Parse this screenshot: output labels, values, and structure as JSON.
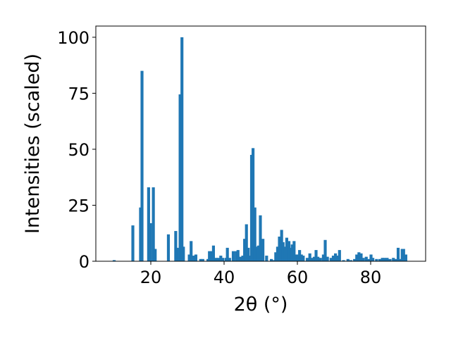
{
  "chart_data": {
    "type": "bar",
    "xlabel": "2θ (°)",
    "ylabel": "Intensities (scaled)",
    "xlim": [
      5,
      95
    ],
    "ylim": [
      0,
      105
    ],
    "xticks": [
      20,
      40,
      60,
      80
    ],
    "yticks": [
      0,
      25,
      50,
      75,
      100
    ],
    "color": "#1f77b4",
    "bar_width": 0.8,
    "x": [
      10.0,
      15.1,
      17.2,
      17.6,
      19.4,
      19.9,
      20.7,
      21.2,
      24.8,
      26.8,
      27.2,
      28.0,
      28.5,
      28.9,
      30.5,
      31.0,
      31.7,
      32.3,
      33.6,
      34.2,
      35.6,
      36.0,
      36.6,
      37.1,
      37.8,
      38.4,
      39.1,
      39.6,
      40.5,
      40.9,
      41.5,
      42.5,
      43.3,
      43.8,
      44.5,
      45.1,
      45.6,
      46.1,
      46.6,
      47.1,
      47.5,
      47.9,
      48.4,
      48.9,
      49.4,
      49.9,
      50.6,
      51.6,
      52.9,
      53.6,
      54.1,
      54.6,
      55.1,
      55.7,
      56.1,
      56.6,
      57.1,
      57.7,
      58.2,
      58.6,
      59.1,
      59.7,
      60.1,
      60.6,
      61.1,
      61.6,
      62.7,
      63.4,
      64.1,
      64.6,
      65.1,
      65.6,
      66.3,
      67.1,
      67.6,
      68.2,
      69.2,
      69.8,
      70.4,
      71.0,
      71.5,
      72.6,
      73.8,
      74.6,
      75.6,
      76.2,
      76.8,
      77.4,
      78.0,
      78.8,
      79.4,
      80.1,
      80.6,
      81.6,
      82.5,
      83.2,
      83.8,
      84.5,
      85.3,
      86.2,
      86.9,
      87.5,
      88.0,
      88.6,
      89.0,
      89.6
    ],
    "values": [
      0.5,
      16,
      24,
      85,
      33,
      17,
      33,
      5.5,
      12,
      13.5,
      6,
      74.5,
      100,
      6.5,
      3,
      9,
      2.5,
      3,
      1,
      1,
      1,
      4.5,
      4.5,
      7,
      1.5,
      1.5,
      2.5,
      1.5,
      1.5,
      6,
      1.5,
      4.5,
      4.5,
      5,
      2,
      2.5,
      10,
      16.5,
      6,
      2.5,
      47.5,
      50.5,
      24,
      6.5,
      7,
      20.5,
      10,
      2.5,
      1,
      0.5,
      4,
      6.5,
      11,
      14,
      8.5,
      6.5,
      10.5,
      9,
      6,
      7.5,
      9,
      3,
      3,
      5,
      3,
      2.5,
      1.5,
      3.5,
      1.5,
      2,
      5,
      2,
      1.5,
      3,
      9.5,
      2,
      1.5,
      2.5,
      3.5,
      2.5,
      5,
      0.5,
      1,
      0.5,
      1,
      3,
      4,
      3.5,
      1.5,
      2,
      1,
      3,
      1.5,
      1,
      1,
      1.5,
      1.5,
      1.5,
      1,
      1.5,
      1,
      6,
      1,
      5.5,
      5.5,
      3
    ]
  }
}
